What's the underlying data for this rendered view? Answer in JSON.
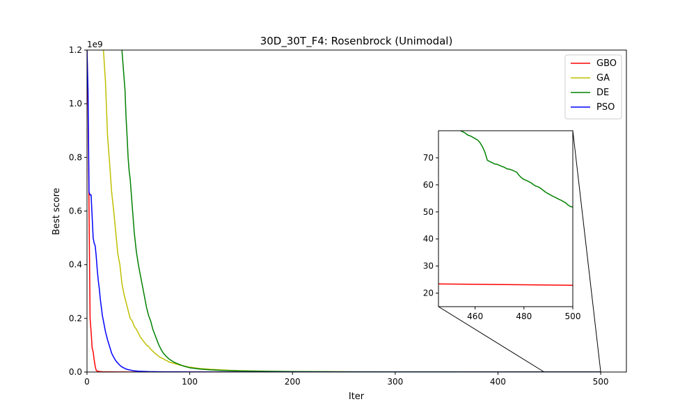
{
  "chart_data": {
    "type": "line",
    "title": "30D_30T_F4: Rosenbrock (Unimodal)",
    "xlabel": "Iter",
    "ylabel": "Best score",
    "y_offset_text": "1e9",
    "xlim": [
      0,
      525
    ],
    "ylim": [
      0,
      1.2
    ],
    "y_scale_factor": 1000000000,
    "xticks": [
      0,
      100,
      200,
      300,
      400,
      500
    ],
    "yticks": [
      0.0,
      0.2,
      0.4,
      0.6,
      0.8,
      1.0,
      1.2
    ],
    "xtick_labels": [
      "0",
      "100",
      "200",
      "300",
      "400",
      "500"
    ],
    "ytick_labels": [
      "0.0",
      "0.2",
      "0.4",
      "0.6",
      "0.8",
      "1.0",
      "1.2"
    ],
    "grid": false,
    "legend_position": "top-right",
    "series": [
      {
        "name": "GBO",
        "color": "#ff0000",
        "x": [
          0,
          1,
          2,
          3,
          4,
          5,
          6,
          7,
          8,
          9,
          10,
          12,
          15,
          20,
          30,
          50,
          100,
          200,
          300,
          400,
          500
        ],
        "y": [
          1.2,
          1.0,
          0.6,
          0.2,
          0.15,
          0.09,
          0.075,
          0.045,
          0.02,
          0.006,
          0.003,
          0.002,
          0.001,
          0.0005,
          0.0002,
          0.0001,
          2e-05,
          5e-06,
          1e-06,
          5e-07,
          2e-07
        ]
      },
      {
        "name": "GA",
        "color": "#bfbf00",
        "x": [
          16,
          18,
          20,
          22,
          24,
          26,
          28,
          30,
          32,
          34,
          36,
          38,
          40,
          42,
          44,
          46,
          48,
          50,
          52,
          54,
          56,
          58,
          60,
          62,
          64,
          66,
          68,
          70,
          72,
          74,
          76,
          78,
          80,
          85,
          90,
          95,
          100,
          110,
          120,
          130,
          140,
          150,
          175,
          200,
          250,
          300,
          400,
          500
        ],
        "y": [
          1.2,
          1.08,
          0.88,
          0.78,
          0.67,
          0.6,
          0.52,
          0.44,
          0.4,
          0.33,
          0.29,
          0.26,
          0.23,
          0.2,
          0.19,
          0.17,
          0.16,
          0.145,
          0.13,
          0.12,
          0.11,
          0.1,
          0.095,
          0.085,
          0.078,
          0.07,
          0.065,
          0.058,
          0.053,
          0.05,
          0.045,
          0.042,
          0.037,
          0.032,
          0.026,
          0.022,
          0.018,
          0.013,
          0.01,
          0.008,
          0.006,
          0.005,
          0.003,
          0.002,
          0.0012,
          0.0008,
          0.0004,
          0.0002
        ]
      },
      {
        "name": "DE",
        "color": "#008000",
        "x": [
          34,
          36,
          37,
          38,
          39,
          40,
          41,
          42,
          44,
          46,
          48,
          50,
          52,
          54,
          56,
          58,
          60,
          62,
          64,
          66,
          68,
          70,
          72,
          74,
          76,
          78,
          80,
          85,
          90,
          95,
          100,
          110,
          120,
          130,
          150,
          175,
          200,
          250,
          300,
          400,
          500
        ],
        "y": [
          1.2,
          1.1,
          1.05,
          0.95,
          0.88,
          0.8,
          0.75,
          0.72,
          0.62,
          0.52,
          0.45,
          0.4,
          0.36,
          0.32,
          0.28,
          0.24,
          0.21,
          0.19,
          0.16,
          0.14,
          0.12,
          0.1,
          0.085,
          0.072,
          0.063,
          0.055,
          0.048,
          0.036,
          0.028,
          0.021,
          0.016,
          0.011,
          0.008,
          0.006,
          0.004,
          0.0025,
          0.0015,
          0.0008,
          0.0004,
          0.0001,
          5e-05
        ]
      },
      {
        "name": "PSO",
        "color": "#0000ff",
        "x": [
          0,
          1,
          2,
          3,
          4,
          5,
          6,
          7,
          8,
          9,
          10,
          11,
          12,
          13,
          14,
          15,
          16,
          18,
          20,
          22,
          24,
          26,
          28,
          30,
          32,
          34,
          36,
          38,
          40,
          45,
          50,
          60,
          75,
          100,
          150,
          200,
          300,
          400,
          500
        ],
        "y": [
          1.2,
          1.05,
          0.67,
          0.66,
          0.66,
          0.58,
          0.5,
          0.48,
          0.47,
          0.43,
          0.38,
          0.34,
          0.31,
          0.27,
          0.24,
          0.21,
          0.19,
          0.15,
          0.12,
          0.095,
          0.07,
          0.055,
          0.042,
          0.033,
          0.025,
          0.019,
          0.015,
          0.011,
          0.009,
          0.005,
          0.003,
          0.0015,
          0.0008,
          0.0004,
          0.0001,
          5e-05,
          2e-05,
          1e-05,
          5e-06
        ]
      }
    ],
    "inset": {
      "xlim": [
        445,
        500
      ],
      "ylim": [
        15,
        80
      ],
      "xticks": [
        460,
        480,
        500
      ],
      "yticks": [
        20,
        30,
        40,
        50,
        60,
        70
      ],
      "xtick_labels": [
        "460",
        "480",
        "500"
      ],
      "ytick_labels": [
        "20",
        "30",
        "40",
        "50",
        "60",
        "70"
      ],
      "series": [
        {
          "name": "DE",
          "color": "#008000",
          "x": [
            449,
            450,
            451,
            452,
            453,
            454,
            455,
            456,
            457,
            458,
            459,
            460,
            461,
            462,
            463,
            464,
            465,
            466,
            467,
            468,
            469,
            470,
            471,
            472,
            473,
            474,
            475,
            476,
            477,
            478,
            479,
            480,
            481,
            482,
            483,
            484,
            485,
            486,
            487,
            488,
            489,
            490,
            491,
            492,
            493,
            494,
            495,
            496,
            497,
            498,
            499,
            500
          ],
          "y": [
            83.5,
            82.5,
            81.5,
            81.0,
            80.5,
            80.0,
            79.6,
            79.1,
            78.4,
            78.1,
            77.6,
            77.1,
            76.6,
            75.6,
            74.1,
            72.1,
            69.1,
            68.6,
            68.2,
            67.7,
            67.6,
            67.2,
            66.8,
            66.5,
            65.9,
            65.8,
            65.5,
            65.1,
            64.7,
            63.5,
            62.6,
            62.0,
            61.6,
            61.2,
            60.7,
            60.0,
            59.5,
            59.2,
            58.6,
            57.9,
            57.2,
            56.7,
            56.2,
            55.7,
            55.3,
            54.8,
            54.4,
            53.9,
            53.4,
            52.6,
            52.0,
            51.8
          ]
        },
        {
          "name": "GBO",
          "color": "#ff0000",
          "x": [
            445,
            500
          ],
          "y": [
            23.4,
            22.9
          ]
        }
      ]
    }
  }
}
